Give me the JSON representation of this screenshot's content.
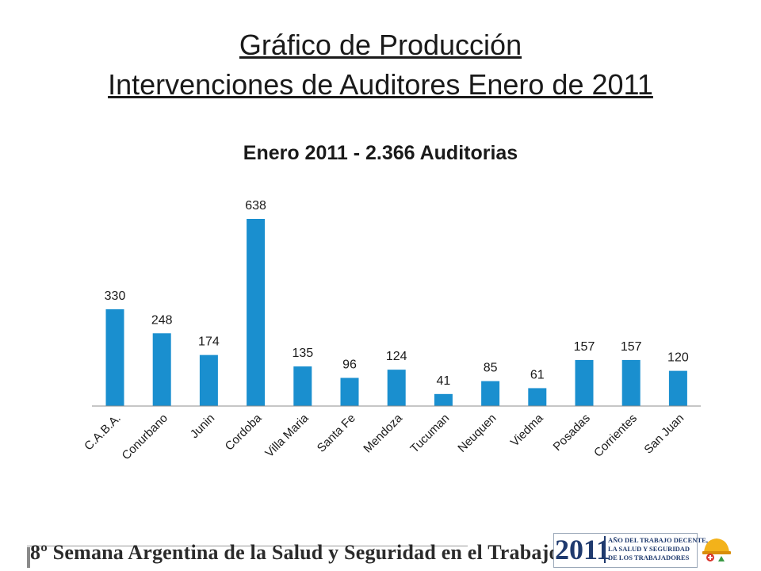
{
  "slide": {
    "title_line1": "Gráfico de Producción",
    "title_line2": "Intervenciones de Auditores Enero de 2011"
  },
  "chart_data": {
    "type": "bar",
    "title": "Enero 2011 - 2.366 Auditorias",
    "categories": [
      "C.A.B.A.",
      "Conurbano",
      "Junin",
      "Cordoba",
      "Villa Maria",
      "Santa Fe",
      "Mendoza",
      "Tucuman",
      "Neuquen",
      "Viedma",
      "Posadas",
      "Corrientes",
      "San Juan"
    ],
    "series": [
      {
        "values": [
          330,
          248,
          174,
          638,
          135,
          96,
          124,
          41,
          85,
          61,
          157,
          157,
          120
        ]
      }
    ],
    "ylim": [
      0,
      638
    ],
    "grid": false,
    "legend": "none",
    "colors": {
      "bar": "#1A8FCF",
      "axis": "#8C8C8C"
    }
  },
  "footer": {
    "event_text": "8º Semana Argentina de la Salud y Seguridad en el Trabajo",
    "logo_year": "2011",
    "logo_line1": "AÑO DEL TRABAJO DECENTE,",
    "logo_line2": "LA SALUD Y SEGURIDAD",
    "logo_line3": "DE LOS TRABAJADORES",
    "logo_icon": "hardhat-worker-icon"
  }
}
